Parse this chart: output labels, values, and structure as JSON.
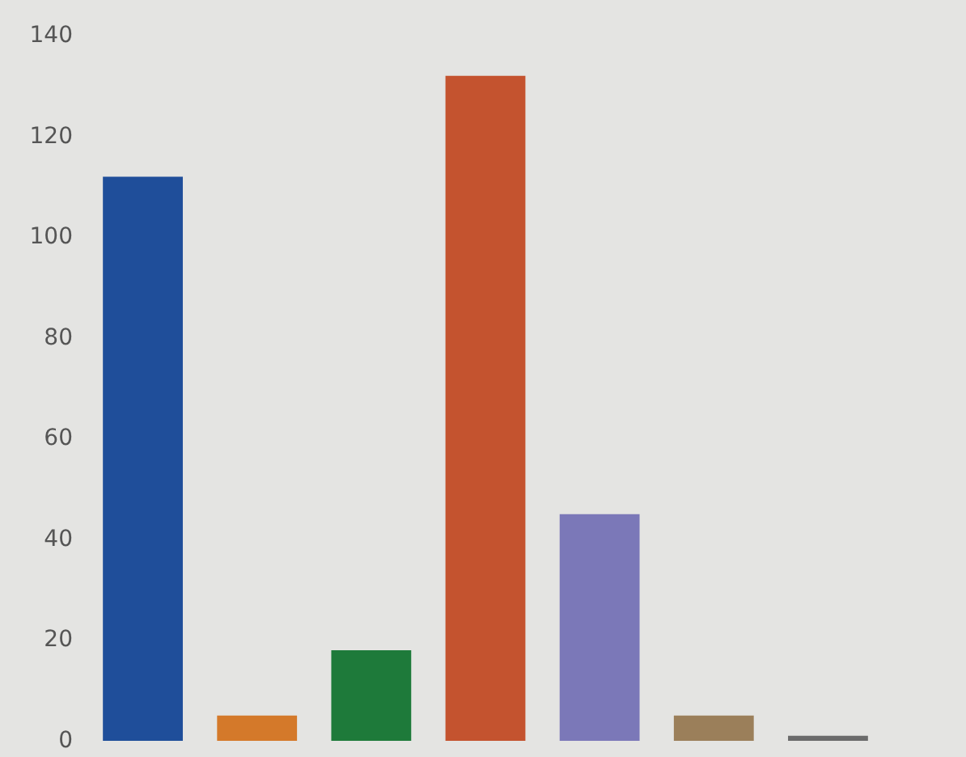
{
  "chart_data": {
    "type": "bar",
    "categories": [
      null,
      null,
      null,
      null,
      null,
      null,
      null
    ],
    "values": [
      112,
      5,
      18,
      132,
      45,
      5,
      1
    ],
    "colors": [
      "#1f4e9a",
      "#d4792a",
      "#1e7a3a",
      "#c4532f",
      "#7b78b8",
      "#9b7f5a",
      "#6b6b6b"
    ],
    "ylim": [
      0,
      140
    ],
    "yticks": [
      0,
      20,
      40,
      60,
      80,
      100,
      120,
      140
    ],
    "grid": false
  }
}
